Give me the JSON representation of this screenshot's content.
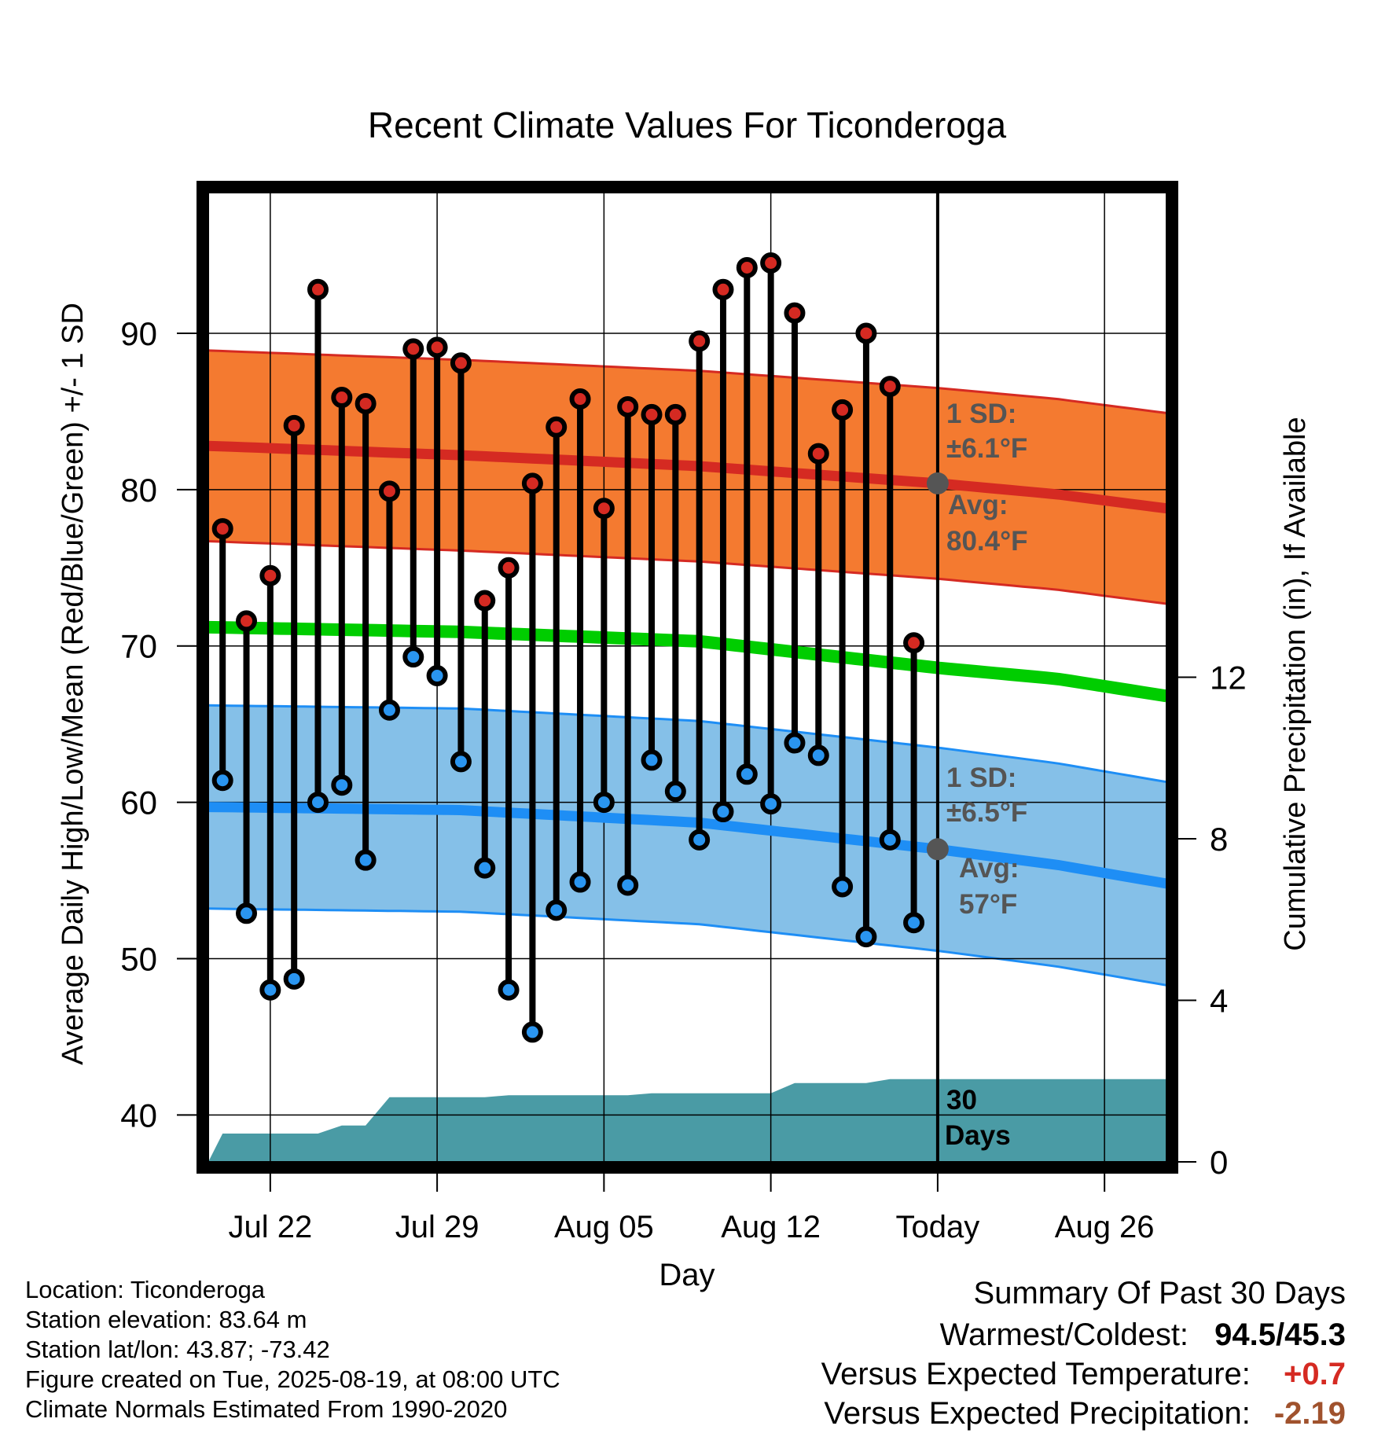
{
  "chart_data": {
    "type": "line",
    "title": "Recent Climate Values For Ticonderoga",
    "xlabel": "Day",
    "ylabel": "Average Daily High/Low/Mean (Red/Blue/Green) +/- 1 SD",
    "y2label": "Cumulative Precipitation (in), If Available",
    "ylim": [
      37,
      99
    ],
    "y2lim": [
      0,
      24
    ],
    "yticks": [
      40,
      50,
      60,
      70,
      80,
      90
    ],
    "y2ticks": [
      0,
      4,
      8,
      12
    ],
    "x_tick_labels": [
      {
        "day": 2,
        "label": "Jul 22"
      },
      {
        "day": 9,
        "label": "Jul 29"
      },
      {
        "day": 16,
        "label": "Aug 05"
      },
      {
        "day": 23,
        "label": "Aug 12"
      },
      {
        "day": 30,
        "label": "Today"
      },
      {
        "day": 37,
        "label": "Aug 26"
      }
    ],
    "x_range": [
      -0.6,
      39.6
    ],
    "today_day": 30,
    "daily_high": [
      77.5,
      71.6,
      74.5,
      84.1,
      92.8,
      85.9,
      85.5,
      79.9,
      89.0,
      89.1,
      88.1,
      72.9,
      75.0,
      80.4,
      84.0,
      85.8,
      78.8,
      85.3,
      84.8,
      84.8,
      89.5,
      92.8,
      94.2,
      94.5,
      91.3,
      82.3,
      85.1,
      90.0,
      86.6,
      70.2
    ],
    "daily_low": [
      61.4,
      52.9,
      48.0,
      48.7,
      60.0,
      61.1,
      56.3,
      65.9,
      69.3,
      68.1,
      62.6,
      55.8,
      48.0,
      45.3,
      53.1,
      54.9,
      60.0,
      54.7,
      62.7,
      60.7,
      57.6,
      59.4,
      61.8,
      59.9,
      63.8,
      63.0,
      54.6,
      51.4,
      57.6,
      52.3
    ],
    "normal_high": {
      "days": [
        -0.6,
        10,
        20,
        30,
        35,
        39.6
      ],
      "values": [
        82.8,
        82.2,
        81.5,
        80.4,
        79.7,
        78.8
      ]
    },
    "normal_high_sd": 6.1,
    "normal_low": {
      "days": [
        -0.6,
        10,
        20,
        30,
        35,
        39.6
      ],
      "values": [
        59.7,
        59.5,
        58.7,
        57.0,
        56.0,
        54.8
      ]
    },
    "normal_low_sd": 6.5,
    "normal_mean": {
      "days": [
        -0.6,
        10,
        20,
        30,
        35,
        39.6
      ],
      "values": [
        71.2,
        70.9,
        70.3,
        68.6,
        67.9,
        66.8
      ]
    },
    "cumulative_precip": {
      "days": [
        -0.6,
        0,
        1,
        2,
        3,
        4,
        5,
        6,
        7,
        8,
        9,
        10,
        11,
        12,
        13,
        14,
        15,
        16,
        17,
        18,
        19,
        20,
        21,
        22,
        23,
        24,
        25,
        26,
        27,
        28,
        29,
        30,
        39.6
      ],
      "values": [
        0.0,
        0.7,
        0.7,
        0.7,
        0.7,
        0.7,
        0.9,
        0.9,
        1.6,
        1.6,
        1.6,
        1.6,
        1.6,
        1.65,
        1.65,
        1.65,
        1.65,
        1.65,
        1.65,
        1.7,
        1.7,
        1.7,
        1.7,
        1.7,
        1.7,
        1.95,
        1.95,
        1.95,
        1.95,
        2.05,
        2.05,
        2.05,
        2.05
      ]
    },
    "colors": {
      "high_band": "#f47a30",
      "high_line": "#d52a22",
      "high_marker": "#d52a22",
      "low_band": "#85c0e8",
      "low_line": "#1e8ef5",
      "low_marker": "#2a95f0",
      "mean_line": "#00cd00",
      "precip": "#4a9ba5",
      "annotation": "#555555"
    },
    "annotations": {
      "high_sd": "1 SD:",
      "high_sd_value": "±6.1°F",
      "high_avg": "Avg:",
      "high_avg_value": "80.4°F",
      "low_sd": "1 SD:",
      "low_sd_value": "±6.5°F",
      "low_avg": "Avg:",
      "low_avg_value": "57°F",
      "precip_days": "30",
      "precip_days_unit": "Days"
    }
  },
  "station_info": {
    "location": "Location: Ticonderoga",
    "elevation": "Station elevation: 83.64 m",
    "latlon": "Station lat/lon: 43.87; -73.42",
    "created": "Figure created on Tue, 2025-08-19, at 08:00 UTC",
    "normals": "Climate Normals Estimated From 1990-2020"
  },
  "summary": {
    "title": "Summary Of Past 30 Days",
    "warm_cold_label": "Warmest/Coldest:",
    "warm_cold_value": "94.5/45.3",
    "temp_label": "Versus Expected Temperature:",
    "temp_value": "+0.7",
    "temp_color": "#d52a22",
    "precip_label": "Versus Expected Precipitation:",
    "precip_value": "-2.19",
    "precip_color": "#a0522d"
  }
}
